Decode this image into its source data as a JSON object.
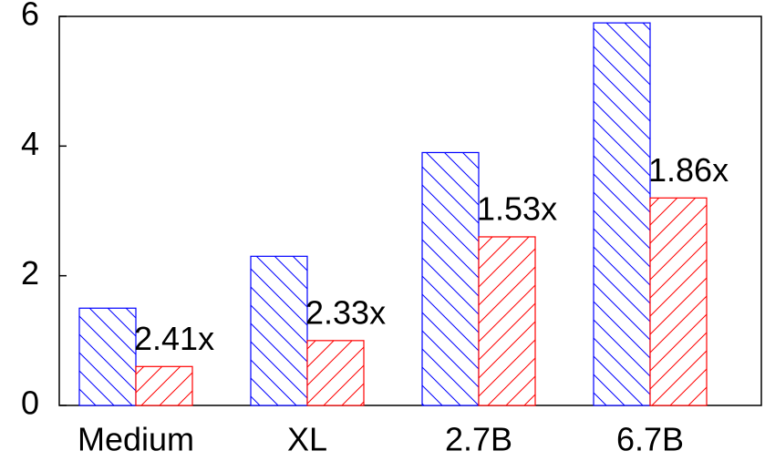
{
  "chart_data": {
    "type": "bar",
    "categories": [
      "Medium",
      "XL",
      "2.7B",
      "6.7B"
    ],
    "series": [
      {
        "color": "#0000ff",
        "hatch": "backslash",
        "values": [
          1.5,
          2.3,
          3.9,
          5.9
        ]
      },
      {
        "color": "#ff0000",
        "hatch": "slash",
        "values": [
          0.6,
          1.0,
          2.6,
          3.2
        ]
      }
    ],
    "annotations": [
      "2.41x",
      "2.33x",
      "1.53x",
      "1.86x"
    ],
    "ylim": [
      0,
      6
    ],
    "yticks": [
      0,
      2,
      4,
      6
    ],
    "grid": false
  }
}
